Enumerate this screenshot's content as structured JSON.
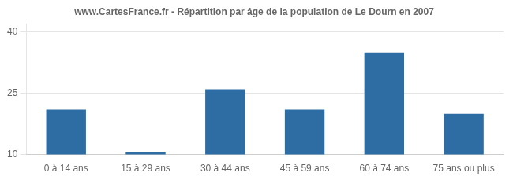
{
  "chart_data": {
    "type": "bar",
    "title": "www.CartesFrance.fr - Répartition par âge de la population de Le Dourn en 2007",
    "categories": [
      "0 à 14 ans",
      "15 à 29 ans",
      "30 à 44 ans",
      "45 à 59 ans",
      "60 à 74 ans",
      "75 ans ou plus"
    ],
    "values": [
      21.0,
      10.5,
      26.0,
      21.0,
      35.0,
      20.0
    ],
    "color": "#2E6DA4",
    "ylim": [
      10,
      42
    ],
    "yticks": [
      10,
      25,
      40
    ],
    "grid": true
  }
}
